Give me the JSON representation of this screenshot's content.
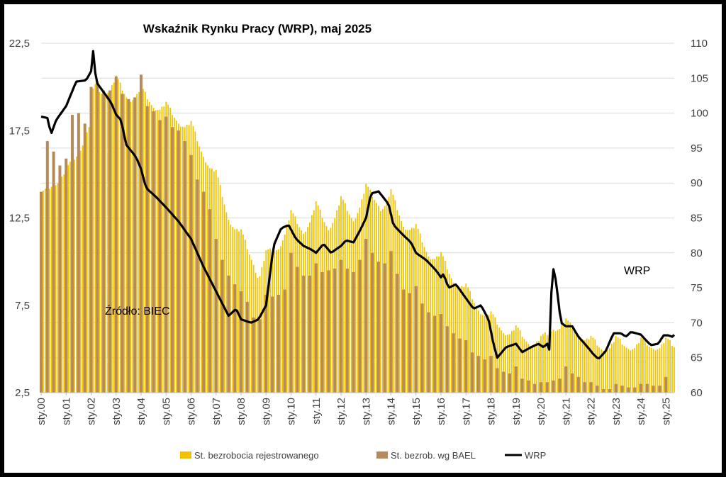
{
  "chart_data": {
    "type": "bar",
    "title": "Wskaźnik Rynku Pracy (WRP), maj 2025",
    "annotations": [
      "Źródło: BIEC",
      "WRP"
    ],
    "x_tick_labels": [
      "sty.00",
      "sty.01",
      "sty.02",
      "sty.03",
      "sty.04",
      "sty.05",
      "sty.06",
      "sty.07",
      "sty.08",
      "sty.09",
      "sty.10",
      "sty.11",
      "sty.12",
      "sty.13",
      "sty.14",
      "sty.15",
      "sty.16",
      "sty.17",
      "sty.18",
      "sty.19",
      "sty.20",
      "sty.21",
      "sty.22",
      "sty.23",
      "sty.24",
      "sty.25"
    ],
    "x_range": [
      "2000-01",
      "2025-05"
    ],
    "y_left": {
      "ticks": [
        "2,5",
        "7,5",
        "12,5",
        "17,5",
        "22,5"
      ],
      "tick_values": [
        2.5,
        7.5,
        12.5,
        17.5,
        22.5
      ],
      "ylim": [
        2.5,
        22.5
      ]
    },
    "y_right": {
      "ticks": [
        "60",
        "65",
        "70",
        "75",
        "80",
        "85",
        "90",
        "95",
        "100",
        "105",
        "110"
      ],
      "tick_values": [
        60,
        65,
        70,
        75,
        80,
        85,
        90,
        95,
        100,
        105,
        110
      ],
      "ylim": [
        60,
        110
      ]
    },
    "grid": "horizontal",
    "legend_position": "bottom",
    "series": [
      {
        "name": "St. bezrobocia rejestrowanego",
        "kind": "bar",
        "axis": "left",
        "color": "#F2C200",
        "frequency": "monthly",
        "anchors": [
          [
            2000.0,
            13.7
          ],
          [
            2001.0,
            15.1
          ],
          [
            2001.5,
            16.2
          ],
          [
            2002.0,
            18.0
          ],
          [
            2002.1,
            20.0
          ],
          [
            2002.5,
            19.5
          ],
          [
            2003.0,
            20.4
          ],
          [
            2003.5,
            19.2
          ],
          [
            2004.0,
            19.8
          ],
          [
            2004.5,
            18.8
          ],
          [
            2005.0,
            18.9
          ],
          [
            2005.5,
            17.9
          ],
          [
            2006.0,
            17.8
          ],
          [
            2006.5,
            16.0
          ],
          [
            2007.0,
            15.0
          ],
          [
            2007.5,
            12.4
          ],
          [
            2008.0,
            11.6
          ],
          [
            2008.7,
            9.1
          ],
          [
            2009.0,
            10.4
          ],
          [
            2009.5,
            10.7
          ],
          [
            2010.0,
            12.7
          ],
          [
            2010.5,
            11.6
          ],
          [
            2011.0,
            13.2
          ],
          [
            2011.5,
            11.8
          ],
          [
            2012.0,
            13.5
          ],
          [
            2012.5,
            12.3
          ],
          [
            2013.0,
            14.2
          ],
          [
            2013.6,
            13.0
          ],
          [
            2014.0,
            13.9
          ],
          [
            2014.5,
            12.0
          ],
          [
            2015.0,
            11.9
          ],
          [
            2015.5,
            10.3
          ],
          [
            2016.0,
            10.3
          ],
          [
            2016.5,
            8.8
          ],
          [
            2017.0,
            8.5
          ],
          [
            2017.5,
            7.2
          ],
          [
            2018.0,
            6.9
          ],
          [
            2018.5,
            5.9
          ],
          [
            2019.0,
            6.1
          ],
          [
            2019.5,
            5.3
          ],
          [
            2020.0,
            5.5
          ],
          [
            2020.5,
            6.1
          ],
          [
            2021.0,
            6.5
          ],
          [
            2021.5,
            5.8
          ],
          [
            2022.0,
            5.5
          ],
          [
            2022.5,
            4.9
          ],
          [
            2023.0,
            5.5
          ],
          [
            2023.5,
            5.0
          ],
          [
            2024.0,
            5.4
          ],
          [
            2024.5,
            5.0
          ],
          [
            2025.0,
            5.4
          ],
          [
            2025.33,
            5.1
          ]
        ]
      },
      {
        "name": "St. bezrob. wg BAEL",
        "kind": "bar",
        "axis": "left",
        "color": "#B68A5A",
        "frequency": "quarterly",
        "values": [
          [
            2000.0,
            14.0
          ],
          [
            2000.25,
            16.9
          ],
          [
            2000.5,
            16.3
          ],
          [
            2000.75,
            15.5
          ],
          [
            2001.0,
            15.9
          ],
          [
            2001.25,
            18.4
          ],
          [
            2001.5,
            18.5
          ],
          [
            2001.75,
            17.9
          ],
          [
            2002.0,
            20.0
          ],
          [
            2002.25,
            20.3
          ],
          [
            2002.5,
            19.8
          ],
          [
            2002.75,
            19.8
          ],
          [
            2003.0,
            20.6
          ],
          [
            2003.25,
            19.6
          ],
          [
            2003.5,
            19.3
          ],
          [
            2003.75,
            19.4
          ],
          [
            2004.0,
            20.7
          ],
          [
            2004.25,
            18.9
          ],
          [
            2004.5,
            18.6
          ],
          [
            2004.75,
            18.1
          ],
          [
            2005.0,
            18.3
          ],
          [
            2005.25,
            17.7
          ],
          [
            2005.5,
            17.5
          ],
          [
            2005.75,
            16.9
          ],
          [
            2006.0,
            16.1
          ],
          [
            2006.25,
            14.7
          ],
          [
            2006.5,
            14.0
          ],
          [
            2006.75,
            13.0
          ],
          [
            2007.0,
            11.3
          ],
          [
            2007.25,
            10.1
          ],
          [
            2007.5,
            9.2
          ],
          [
            2007.75,
            8.7
          ],
          [
            2008.0,
            8.3
          ],
          [
            2008.25,
            7.7
          ],
          [
            2008.5,
            6.8
          ],
          [
            2008.75,
            6.7
          ],
          [
            2009.0,
            8.1
          ],
          [
            2009.25,
            8.0
          ],
          [
            2009.5,
            8.1
          ],
          [
            2009.75,
            8.4
          ],
          [
            2010.0,
            10.5
          ],
          [
            2010.25,
            9.7
          ],
          [
            2010.5,
            9.2
          ],
          [
            2010.75,
            9.2
          ],
          [
            2011.0,
            9.9
          ],
          [
            2011.25,
            9.4
          ],
          [
            2011.5,
            9.5
          ],
          [
            2011.75,
            9.6
          ],
          [
            2012.0,
            10.1
          ],
          [
            2012.25,
            9.6
          ],
          [
            2012.5,
            9.4
          ],
          [
            2012.75,
            10.1
          ],
          [
            2013.0,
            11.3
          ],
          [
            2013.25,
            10.5
          ],
          [
            2013.5,
            10.0
          ],
          [
            2013.75,
            9.9
          ],
          [
            2014.0,
            10.6
          ],
          [
            2014.25,
            9.3
          ],
          [
            2014.5,
            8.4
          ],
          [
            2014.75,
            8.2
          ],
          [
            2015.0,
            8.6
          ],
          [
            2015.25,
            7.6
          ],
          [
            2015.5,
            7.1
          ],
          [
            2015.75,
            6.9
          ],
          [
            2016.0,
            7.0
          ],
          [
            2016.25,
            6.3
          ],
          [
            2016.5,
            5.9
          ],
          [
            2016.75,
            5.6
          ],
          [
            2017.0,
            5.5
          ],
          [
            2017.25,
            4.8
          ],
          [
            2017.5,
            4.6
          ],
          [
            2017.75,
            4.4
          ],
          [
            2018.0,
            4.6
          ],
          [
            2018.25,
            3.9
          ],
          [
            2018.5,
            3.7
          ],
          [
            2018.75,
            3.6
          ],
          [
            2019.0,
            4.0
          ],
          [
            2019.25,
            3.3
          ],
          [
            2019.5,
            3.2
          ],
          [
            2019.75,
            3.0
          ],
          [
            2020.0,
            3.1
          ],
          [
            2020.25,
            3.1
          ],
          [
            2020.5,
            3.2
          ],
          [
            2020.75,
            3.3
          ],
          [
            2021.0,
            4.0
          ],
          [
            2021.25,
            3.6
          ],
          [
            2021.5,
            3.4
          ],
          [
            2021.75,
            3.1
          ],
          [
            2022.0,
            3.1
          ],
          [
            2022.25,
            2.9
          ],
          [
            2022.5,
            2.7
          ],
          [
            2022.75,
            2.7
          ],
          [
            2023.0,
            3.0
          ],
          [
            2023.25,
            2.9
          ],
          [
            2023.5,
            2.8
          ],
          [
            2023.75,
            2.8
          ],
          [
            2024.0,
            3.0
          ],
          [
            2024.25,
            3.0
          ],
          [
            2024.5,
            2.9
          ],
          [
            2024.75,
            2.9
          ],
          [
            2025.0,
            3.4
          ]
        ]
      },
      {
        "name": "WRP",
        "kind": "line",
        "axis": "right",
        "color": "#000000",
        "frequency": "monthly",
        "anchors": [
          [
            2000.0,
            99.5
          ],
          [
            2000.25,
            99.3
          ],
          [
            2000.4,
            97.0
          ],
          [
            2000.6,
            99.0
          ],
          [
            2001.0,
            101.0
          ],
          [
            2001.4,
            104.5
          ],
          [
            2001.8,
            104.7
          ],
          [
            2002.0,
            106.0
          ],
          [
            2002.08,
            109.0
          ],
          [
            2002.2,
            104.5
          ],
          [
            2002.4,
            103.5
          ],
          [
            2002.8,
            101.5
          ],
          [
            2003.0,
            99.8
          ],
          [
            2003.2,
            99.0
          ],
          [
            2003.4,
            95.5
          ],
          [
            2003.8,
            93.7
          ],
          [
            2004.0,
            92.0
          ],
          [
            2004.2,
            89.3
          ],
          [
            2004.6,
            88.0
          ],
          [
            2005.0,
            86.5
          ],
          [
            2005.5,
            84.5
          ],
          [
            2006.0,
            82.0
          ],
          [
            2006.5,
            78.0
          ],
          [
            2007.0,
            74.5
          ],
          [
            2007.5,
            71.0
          ],
          [
            2007.8,
            72.0
          ],
          [
            2008.0,
            70.5
          ],
          [
            2008.4,
            70.0
          ],
          [
            2008.7,
            70.5
          ],
          [
            2009.0,
            72.5
          ],
          [
            2009.3,
            81.0
          ],
          [
            2009.6,
            83.5
          ],
          [
            2009.9,
            84.0
          ],
          [
            2010.2,
            82.0
          ],
          [
            2010.5,
            81.0
          ],
          [
            2010.8,
            80.5
          ],
          [
            2011.0,
            80.0
          ],
          [
            2011.3,
            81.3
          ],
          [
            2011.6,
            80.0
          ],
          [
            2012.0,
            81.0
          ],
          [
            2012.2,
            81.8
          ],
          [
            2012.5,
            81.5
          ],
          [
            2012.8,
            83.5
          ],
          [
            2013.0,
            85.0
          ],
          [
            2013.2,
            88.5
          ],
          [
            2013.5,
            88.8
          ],
          [
            2013.9,
            87.0
          ],
          [
            2014.1,
            84.0
          ],
          [
            2014.5,
            82.5
          ],
          [
            2014.8,
            81.5
          ],
          [
            2015.0,
            80.0
          ],
          [
            2015.4,
            79.0
          ],
          [
            2015.8,
            77.5
          ],
          [
            2016.0,
            76.5
          ],
          [
            2016.1,
            77.0
          ],
          [
            2016.3,
            75.0
          ],
          [
            2016.6,
            75.5
          ],
          [
            2017.0,
            73.5
          ],
          [
            2017.3,
            72.0
          ],
          [
            2017.6,
            72.5
          ],
          [
            2017.9,
            70.5
          ],
          [
            2018.1,
            67.0
          ],
          [
            2018.25,
            65.0
          ],
          [
            2018.6,
            66.5
          ],
          [
            2019.0,
            67.0
          ],
          [
            2019.25,
            65.8
          ],
          [
            2019.6,
            66.5
          ],
          [
            2019.9,
            67.0
          ],
          [
            2020.1,
            66.5
          ],
          [
            2020.25,
            67.0
          ],
          [
            2020.35,
            66.0
          ],
          [
            2020.45,
            78.5
          ],
          [
            2020.6,
            76.0
          ],
          [
            2020.8,
            70.0
          ],
          [
            2021.0,
            69.5
          ],
          [
            2021.25,
            69.5
          ],
          [
            2021.5,
            68.0
          ],
          [
            2021.8,
            66.8
          ],
          [
            2022.1,
            65.5
          ],
          [
            2022.3,
            64.8
          ],
          [
            2022.6,
            66.0
          ],
          [
            2022.9,
            68.5
          ],
          [
            2023.2,
            68.5
          ],
          [
            2023.4,
            68.0
          ],
          [
            2023.6,
            68.7
          ],
          [
            2024.0,
            68.3
          ],
          [
            2024.2,
            67.5
          ],
          [
            2024.4,
            66.8
          ],
          [
            2024.7,
            67.0
          ],
          [
            2024.9,
            68.2
          ],
          [
            2025.1,
            68.2
          ],
          [
            2025.25,
            68.0
          ],
          [
            2025.3,
            68.5
          ],
          [
            2025.4,
            67.8
          ],
          [
            2025.45,
            67.9
          ]
        ]
      }
    ]
  }
}
